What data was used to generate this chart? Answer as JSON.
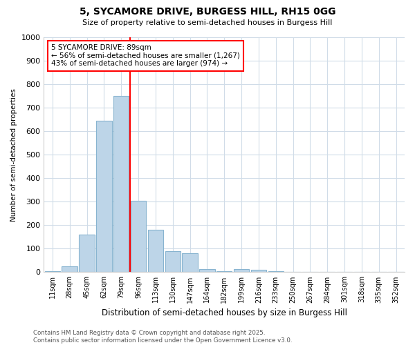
{
  "title1": "5, SYCAMORE DRIVE, BURGESS HILL, RH15 0GG",
  "title2": "Size of property relative to semi-detached houses in Burgess Hill",
  "xlabel": "Distribution of semi-detached houses by size in Burgess Hill",
  "ylabel": "Number of semi-detached properties",
  "bins": [
    "11sqm",
    "28sqm",
    "45sqm",
    "62sqm",
    "79sqm",
    "96sqm",
    "113sqm",
    "130sqm",
    "147sqm",
    "164sqm",
    "182sqm",
    "199sqm",
    "216sqm",
    "233sqm",
    "250sqm",
    "267sqm",
    "284sqm",
    "301sqm",
    "318sqm",
    "335sqm",
    "352sqm"
  ],
  "counts": [
    5,
    25,
    160,
    645,
    750,
    305,
    180,
    90,
    80,
    13,
    3,
    12,
    10,
    3,
    2,
    1,
    2,
    1,
    1,
    1,
    1
  ],
  "bar_color": "#bdd5e8",
  "bar_edge_color": "#88b4d0",
  "vline_x_index": 5,
  "annotation_text": "5 SYCAMORE DRIVE: 89sqm\n← 56% of semi-detached houses are smaller (1,267)\n43% of semi-detached houses are larger (974) →",
  "annotation_box_color": "white",
  "annotation_box_edge_color": "red",
  "vline_color": "red",
  "footer": "Contains HM Land Registry data © Crown copyright and database right 2025.\nContains public sector information licensed under the Open Government Licence v3.0.",
  "ylim": [
    0,
    1000
  ],
  "yticks": [
    0,
    100,
    200,
    300,
    400,
    500,
    600,
    700,
    800,
    900,
    1000
  ],
  "background_color": "#ffffff",
  "grid_color": "#d0dce8"
}
